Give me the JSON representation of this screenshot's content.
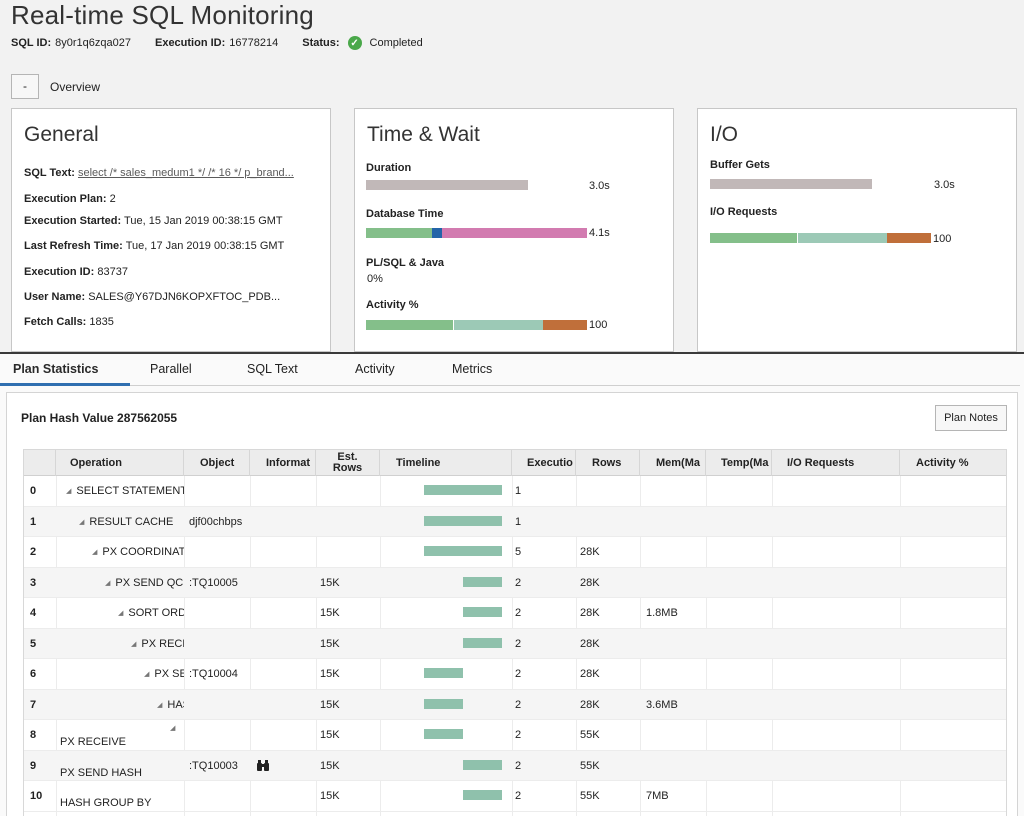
{
  "header": {
    "title": "Real-time SQL Monitoring",
    "sql_id_label": "SQL ID:",
    "sql_id": "8y0r1q6zqa027",
    "execution_id_label": "Execution ID:",
    "execution_id": "16778214",
    "status_label": "Status:",
    "status": "Completed",
    "status_color": "#4aa84a"
  },
  "overview": {
    "collapse_label": "-",
    "label": "Overview"
  },
  "general": {
    "title": "General",
    "rows": [
      {
        "label": "SQL Text:",
        "value": "select /* sales_medum1 */ /* 16 */ p_brand..."
      },
      {
        "label": "Execution Plan:",
        "value": "2"
      },
      {
        "label": "Execution Started:",
        "value": "Tue, 15 Jan 2019 00:38:15 GMT"
      },
      {
        "label": "Last Refresh Time:",
        "value": "Tue, 17 Jan 2019 00:38:15 GMT"
      },
      {
        "label": "Execution ID:",
        "value": "83737"
      },
      {
        "label": "User Name:",
        "value": "SALES@Y67DJN6KOPXFTOC_PDB..."
      },
      {
        "label": "Fetch Calls:",
        "value": "1835"
      }
    ]
  },
  "time_wait": {
    "title": "Time & Wait",
    "duration_label": "Duration",
    "duration_value": "3.0s",
    "db_time_label": "Database Time",
    "db_time_value": "4.1s",
    "plsql_label": "PL/SQL & Java",
    "plsql_value": "0%",
    "activity_label": "Activity %",
    "activity_value": "100"
  },
  "io": {
    "title": "I/O",
    "buffer_gets_label": "Buffer Gets",
    "buffer_gets_value": "3.0s",
    "io_requests_label": "I/O Requests",
    "io_requests_value": "100"
  },
  "colors": {
    "gray_bar": "#c1b8b8",
    "green": "#84bf8a",
    "teal": "#9cc9b6",
    "blue": "#2364a8",
    "pink": "#d27bb0",
    "orange": "#c06f3a"
  },
  "tabs": [
    "Plan Statistics",
    "Parallel",
    "SQL Text",
    "Activity",
    "Metrics"
  ],
  "plan": {
    "hash_label": "Plan Hash Value 287562055",
    "notes_button": "Plan Notes",
    "columns": [
      "Operation",
      "Object",
      "Informat",
      "Est.\nRows",
      "Timeline",
      "Executio",
      "Rows",
      "Mem(Ma",
      "Temp(Ma",
      "I/O Requests",
      "Activity %"
    ],
    "rows": [
      {
        "id": "0",
        "op": "SELECT STATEMENT",
        "indent": 0,
        "object": "",
        "info": "",
        "est": "",
        "exec": "1",
        "rows": "",
        "mem": ""
      },
      {
        "id": "1",
        "op": "RESULT CACHE",
        "indent": 1,
        "object": "djf00chbps",
        "info": "",
        "est": "",
        "exec": "1",
        "rows": "",
        "mem": ""
      },
      {
        "id": "2",
        "op": "PX COORDINATOR",
        "indent": 2,
        "object": "",
        "info": "",
        "est": "",
        "exec": "5",
        "rows": "28K",
        "mem": ""
      },
      {
        "id": "3",
        "op": "PX SEND QC",
        "indent": 3,
        "object": ":TQ10005",
        "info": "",
        "est": "15K",
        "exec": "2",
        "rows": "28K",
        "mem": ""
      },
      {
        "id": "4",
        "op": "SORT ORDER BY",
        "indent": 4,
        "object": "",
        "info": "",
        "est": "15K",
        "exec": "2",
        "rows": "28K",
        "mem": "1.8MB"
      },
      {
        "id": "5",
        "op": "PX RECEIVE",
        "indent": 5,
        "object": "",
        "info": "",
        "est": "15K",
        "exec": "2",
        "rows": "28K",
        "mem": ""
      },
      {
        "id": "6",
        "op": "PX SEND",
        "indent": 6,
        "object": ":TQ10004",
        "info": "",
        "est": "15K",
        "exec": "2",
        "rows": "28K",
        "mem": ""
      },
      {
        "id": "7",
        "op": "HASH",
        "indent": 7,
        "object": "",
        "info": "",
        "est": "15K",
        "exec": "2",
        "rows": "28K",
        "mem": "3.6MB"
      },
      {
        "id": "8",
        "op": "PX RECEIVE",
        "indent": 8,
        "object": "",
        "info": "",
        "est": "15K",
        "exec": "2",
        "rows": "55K",
        "mem": ""
      },
      {
        "id": "9",
        "op": "PX SEND HASH",
        "indent": 8,
        "object": ":TQ10003",
        "info": "binoculars-icon",
        "est": "15K",
        "exec": "2",
        "rows": "55K",
        "mem": ""
      },
      {
        "id": "10",
        "op": "HASH GROUP BY",
        "indent": 8,
        "object": "",
        "info": "",
        "est": "15K",
        "exec": "2",
        "rows": "55K",
        "mem": "7MB"
      }
    ]
  }
}
